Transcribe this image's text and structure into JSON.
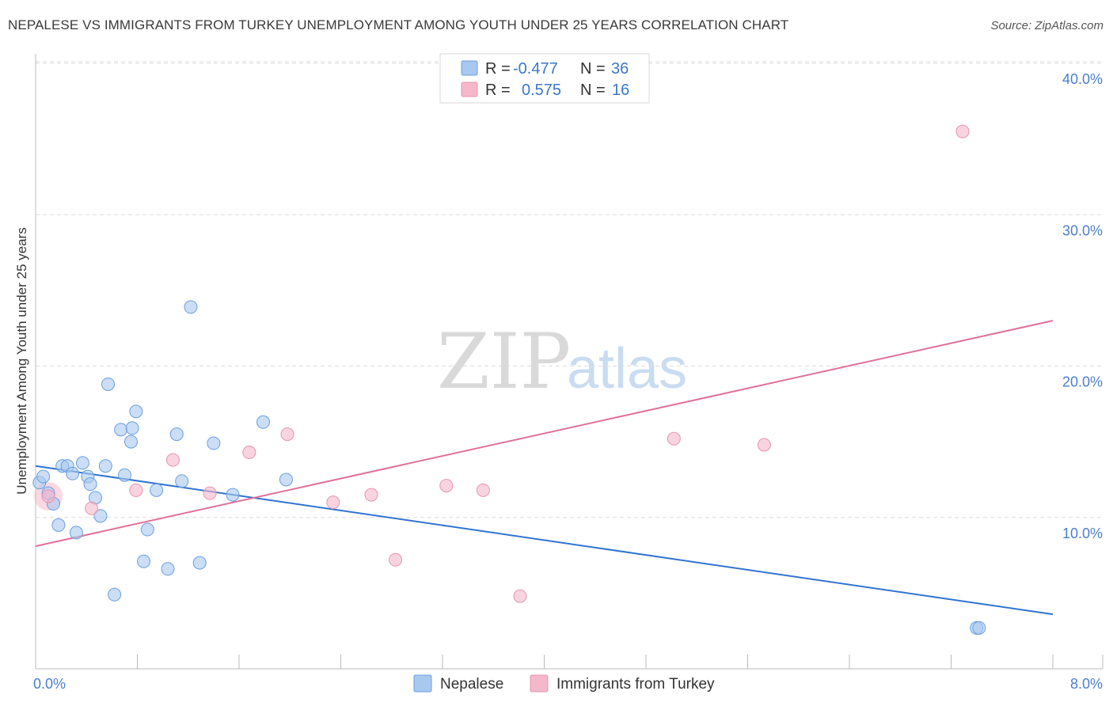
{
  "header": {
    "title": "NEPALESE VS IMMIGRANTS FROM TURKEY UNEMPLOYMENT AMONG YOUTH UNDER 25 YEARS CORRELATION CHART",
    "source": "Source: ZipAtlas.com"
  },
  "watermark": {
    "zip": "ZIP",
    "atlas": "atlas"
  },
  "legend_box": {
    "rows": [
      {
        "r_label": "R =",
        "r_value": "-0.477",
        "n_label": "N =",
        "n_value": "36",
        "color": "#a9c8f0"
      },
      {
        "r_label": "R =",
        "r_value": "0.575",
        "n_label": "N =",
        "n_value": "16",
        "color": "#f5b8cb"
      }
    ]
  },
  "bottom_legend": [
    {
      "label": "Nepalese",
      "color": "#a9c8f0"
    },
    {
      "label": "Immigrants from Turkey",
      "color": "#f5b8cb"
    }
  ],
  "chart_data": {
    "type": "scatter",
    "title": "NEPALESE VS IMMIGRANTS FROM TURKEY UNEMPLOYMENT AMONG YOUTH UNDER 25 YEARS CORRELATION CHART",
    "xlabel": "",
    "ylabel": "Unemployment Among Youth under 25 years",
    "xlim": [
      0,
      8
    ],
    "ylim": [
      0,
      40
    ],
    "x_tick_labels": [
      {
        "value": 0,
        "label": "0.0%"
      },
      {
        "value": 8,
        "label": "8.0%"
      }
    ],
    "y_tick_labels": [
      {
        "value": 10,
        "label": "10.0%"
      },
      {
        "value": 20,
        "label": "20.0%"
      },
      {
        "value": 30,
        "label": "30.0%"
      },
      {
        "value": 40,
        "label": "40.0%"
      }
    ],
    "y_gridlines": [
      10,
      20,
      30,
      40
    ],
    "grid": true,
    "legend": "top-center",
    "series": [
      {
        "name": "Nepalese",
        "color": "#a9c8f0",
        "edge": "#6a9fdc",
        "line_color": "#2f74d0",
        "trend": {
          "x": [
            0.0,
            8.0
          ],
          "y": [
            13.4,
            3.6
          ]
        },
        "points": [
          [
            0.03,
            12.3
          ],
          [
            0.06,
            12.7
          ],
          [
            0.1,
            11.6
          ],
          [
            0.14,
            10.9
          ],
          [
            0.18,
            9.5
          ],
          [
            0.21,
            13.4
          ],
          [
            0.25,
            13.4
          ],
          [
            0.29,
            12.9
          ],
          [
            0.32,
            9.0
          ],
          [
            0.37,
            13.6
          ],
          [
            0.41,
            12.7
          ],
          [
            0.43,
            12.2
          ],
          [
            0.47,
            11.3
          ],
          [
            0.51,
            10.1
          ],
          [
            0.55,
            13.4
          ],
          [
            0.57,
            18.8
          ],
          [
            0.62,
            4.9
          ],
          [
            0.67,
            15.8
          ],
          [
            0.7,
            12.8
          ],
          [
            0.75,
            15.0
          ],
          [
            0.76,
            15.9
          ],
          [
            0.79,
            17.0
          ],
          [
            0.85,
            7.1
          ],
          [
            0.88,
            9.2
          ],
          [
            0.95,
            11.8
          ],
          [
            1.04,
            6.6
          ],
          [
            1.11,
            15.5
          ],
          [
            1.15,
            12.4
          ],
          [
            1.22,
            23.9
          ],
          [
            1.29,
            7.0
          ],
          [
            1.4,
            14.9
          ],
          [
            1.55,
            11.5
          ],
          [
            1.79,
            16.3
          ],
          [
            1.97,
            12.5
          ],
          [
            7.4,
            2.7
          ],
          [
            7.42,
            2.7
          ]
        ]
      },
      {
        "name": "Immigrants from Turkey",
        "color": "#f5b8cb",
        "edge": "#e893b0",
        "line_color": "#e0709a",
        "trend": {
          "x": [
            0.0,
            8.0
          ],
          "y": [
            8.1,
            23.0
          ]
        },
        "points": [
          [
            0.1,
            11.4
          ],
          [
            0.44,
            10.6
          ],
          [
            0.79,
            11.8
          ],
          [
            1.08,
            13.8
          ],
          [
            1.37,
            11.6
          ],
          [
            1.68,
            14.3
          ],
          [
            1.98,
            15.5
          ],
          [
            2.34,
            11.0
          ],
          [
            2.64,
            11.5
          ],
          [
            2.83,
            7.2
          ],
          [
            3.23,
            12.1
          ],
          [
            3.52,
            11.8
          ],
          [
            3.81,
            4.8
          ],
          [
            5.02,
            15.2
          ],
          [
            5.73,
            14.8
          ],
          [
            7.29,
            35.5
          ]
        ]
      }
    ]
  }
}
